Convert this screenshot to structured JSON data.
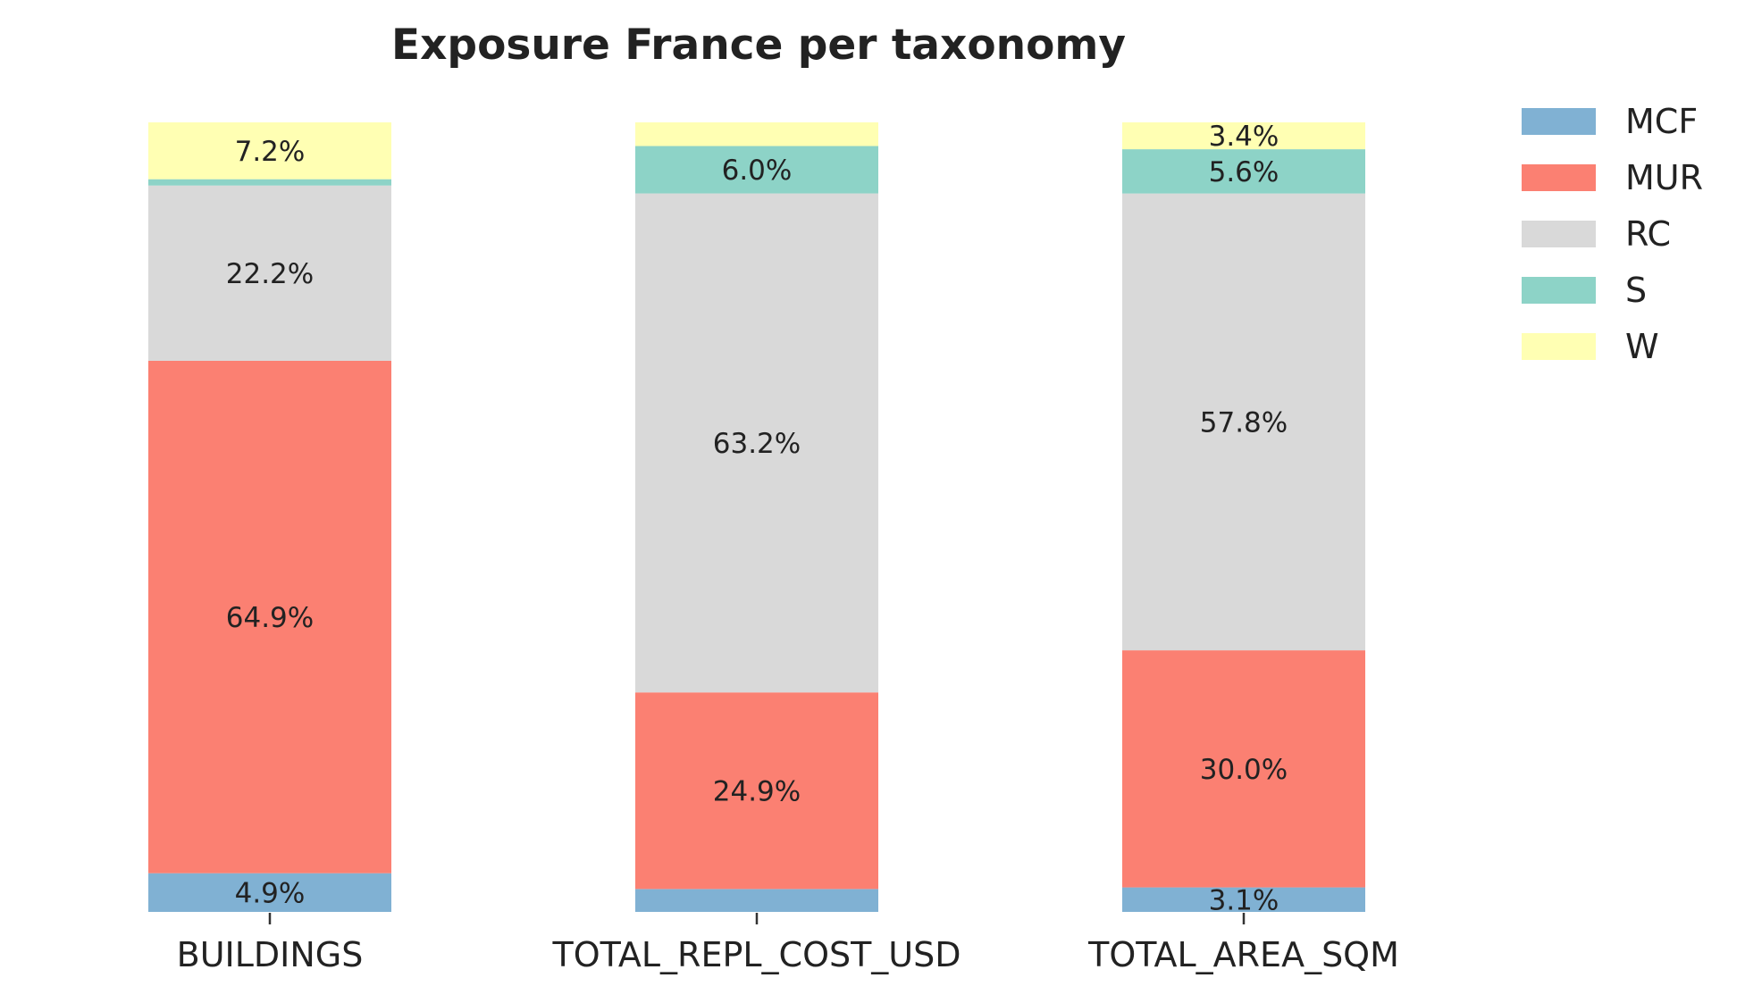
{
  "chart_data": {
    "type": "bar",
    "stacked": true,
    "title": "Exposure France per taxonomy",
    "xlabel": "",
    "ylabel": "",
    "ylim": [
      0,
      100
    ],
    "grid": false,
    "legend_position": "top-right outside",
    "categories": [
      "BUILDINGS",
      "TOTAL_REPL_COST_USD",
      "TOTAL_AREA_SQM"
    ],
    "series": [
      {
        "name": "MCF",
        "color": "#80b1d3",
        "values": [
          4.9,
          2.9,
          3.1
        ],
        "labels": [
          "4.9%",
          "",
          "3.1%"
        ]
      },
      {
        "name": "MUR",
        "color": "#fb8072",
        "values": [
          64.9,
          24.9,
          30.0
        ],
        "labels": [
          "64.9%",
          "24.9%",
          "30.0%"
        ]
      },
      {
        "name": "RC",
        "color": "#d9d9d9",
        "values": [
          22.2,
          63.2,
          57.8
        ],
        "labels": [
          "22.2%",
          "63.2%",
          "57.8%"
        ]
      },
      {
        "name": "S",
        "color": "#8dd3c7",
        "values": [
          0.8,
          6.0,
          5.6
        ],
        "labels": [
          "",
          "6.0%",
          "5.6%"
        ]
      },
      {
        "name": "W",
        "color": "#ffffb3",
        "values": [
          7.2,
          3.0,
          3.4
        ],
        "labels": [
          "7.2%",
          "",
          "3.4%"
        ]
      }
    ]
  }
}
